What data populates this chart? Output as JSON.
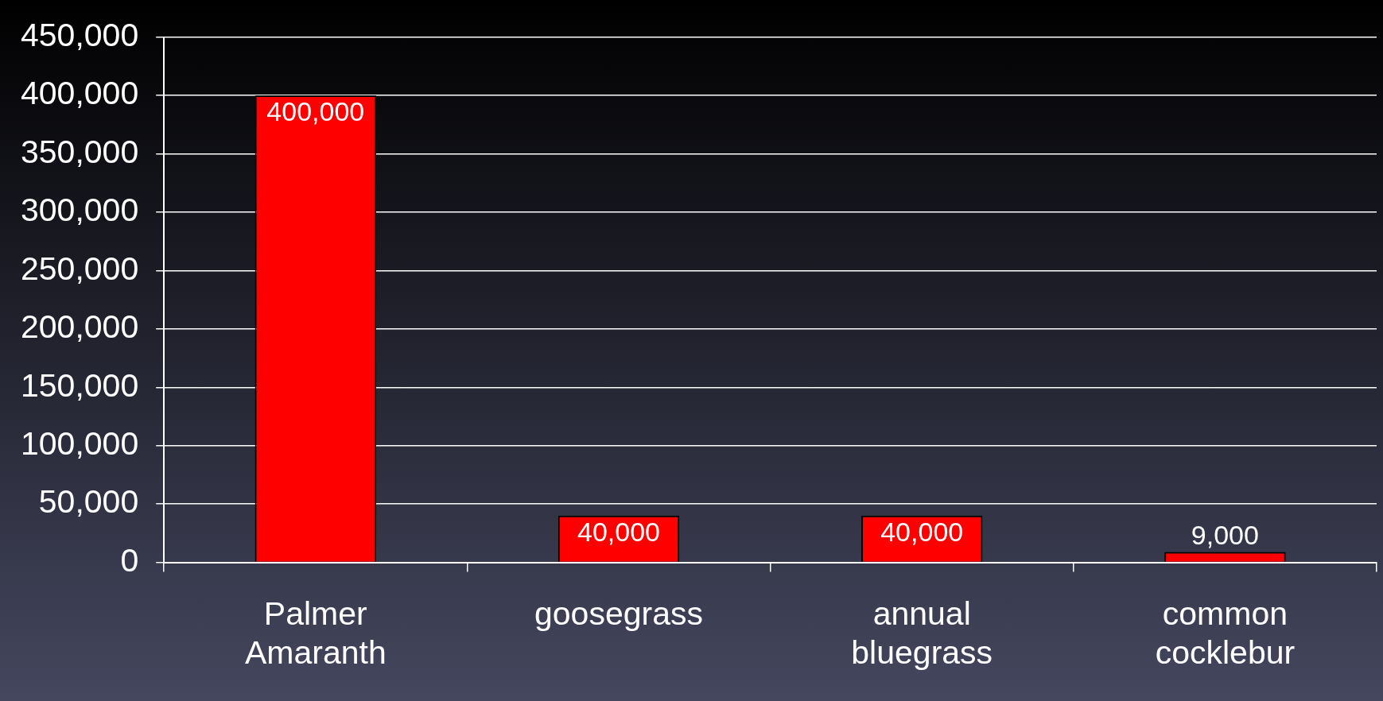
{
  "chart_data": {
    "type": "bar",
    "categories": [
      "Palmer Amaranth",
      "goosegrass",
      "annual bluegrass",
      "common cocklebur"
    ],
    "values": [
      400000,
      40000,
      40000,
      9000
    ],
    "value_labels": [
      "400,000",
      "40,000",
      "40,000",
      "9,000"
    ],
    "color": "#ff0000",
    "ylim": [
      0,
      450000
    ],
    "yticks": [
      {
        "value": 0,
        "label": "0"
      },
      {
        "value": 50000,
        "label": "50,000"
      },
      {
        "value": 100000,
        "label": "100,000"
      },
      {
        "value": 150000,
        "label": "150,000"
      },
      {
        "value": 200000,
        "label": "200,000"
      },
      {
        "value": 250000,
        "label": "250,000"
      },
      {
        "value": 300000,
        "label": "300,000"
      },
      {
        "value": 350000,
        "label": "350,000"
      },
      {
        "value": 400000,
        "label": "400,000"
      },
      {
        "value": 450000,
        "label": "450,000"
      }
    ],
    "grid": "y",
    "legend": false
  }
}
